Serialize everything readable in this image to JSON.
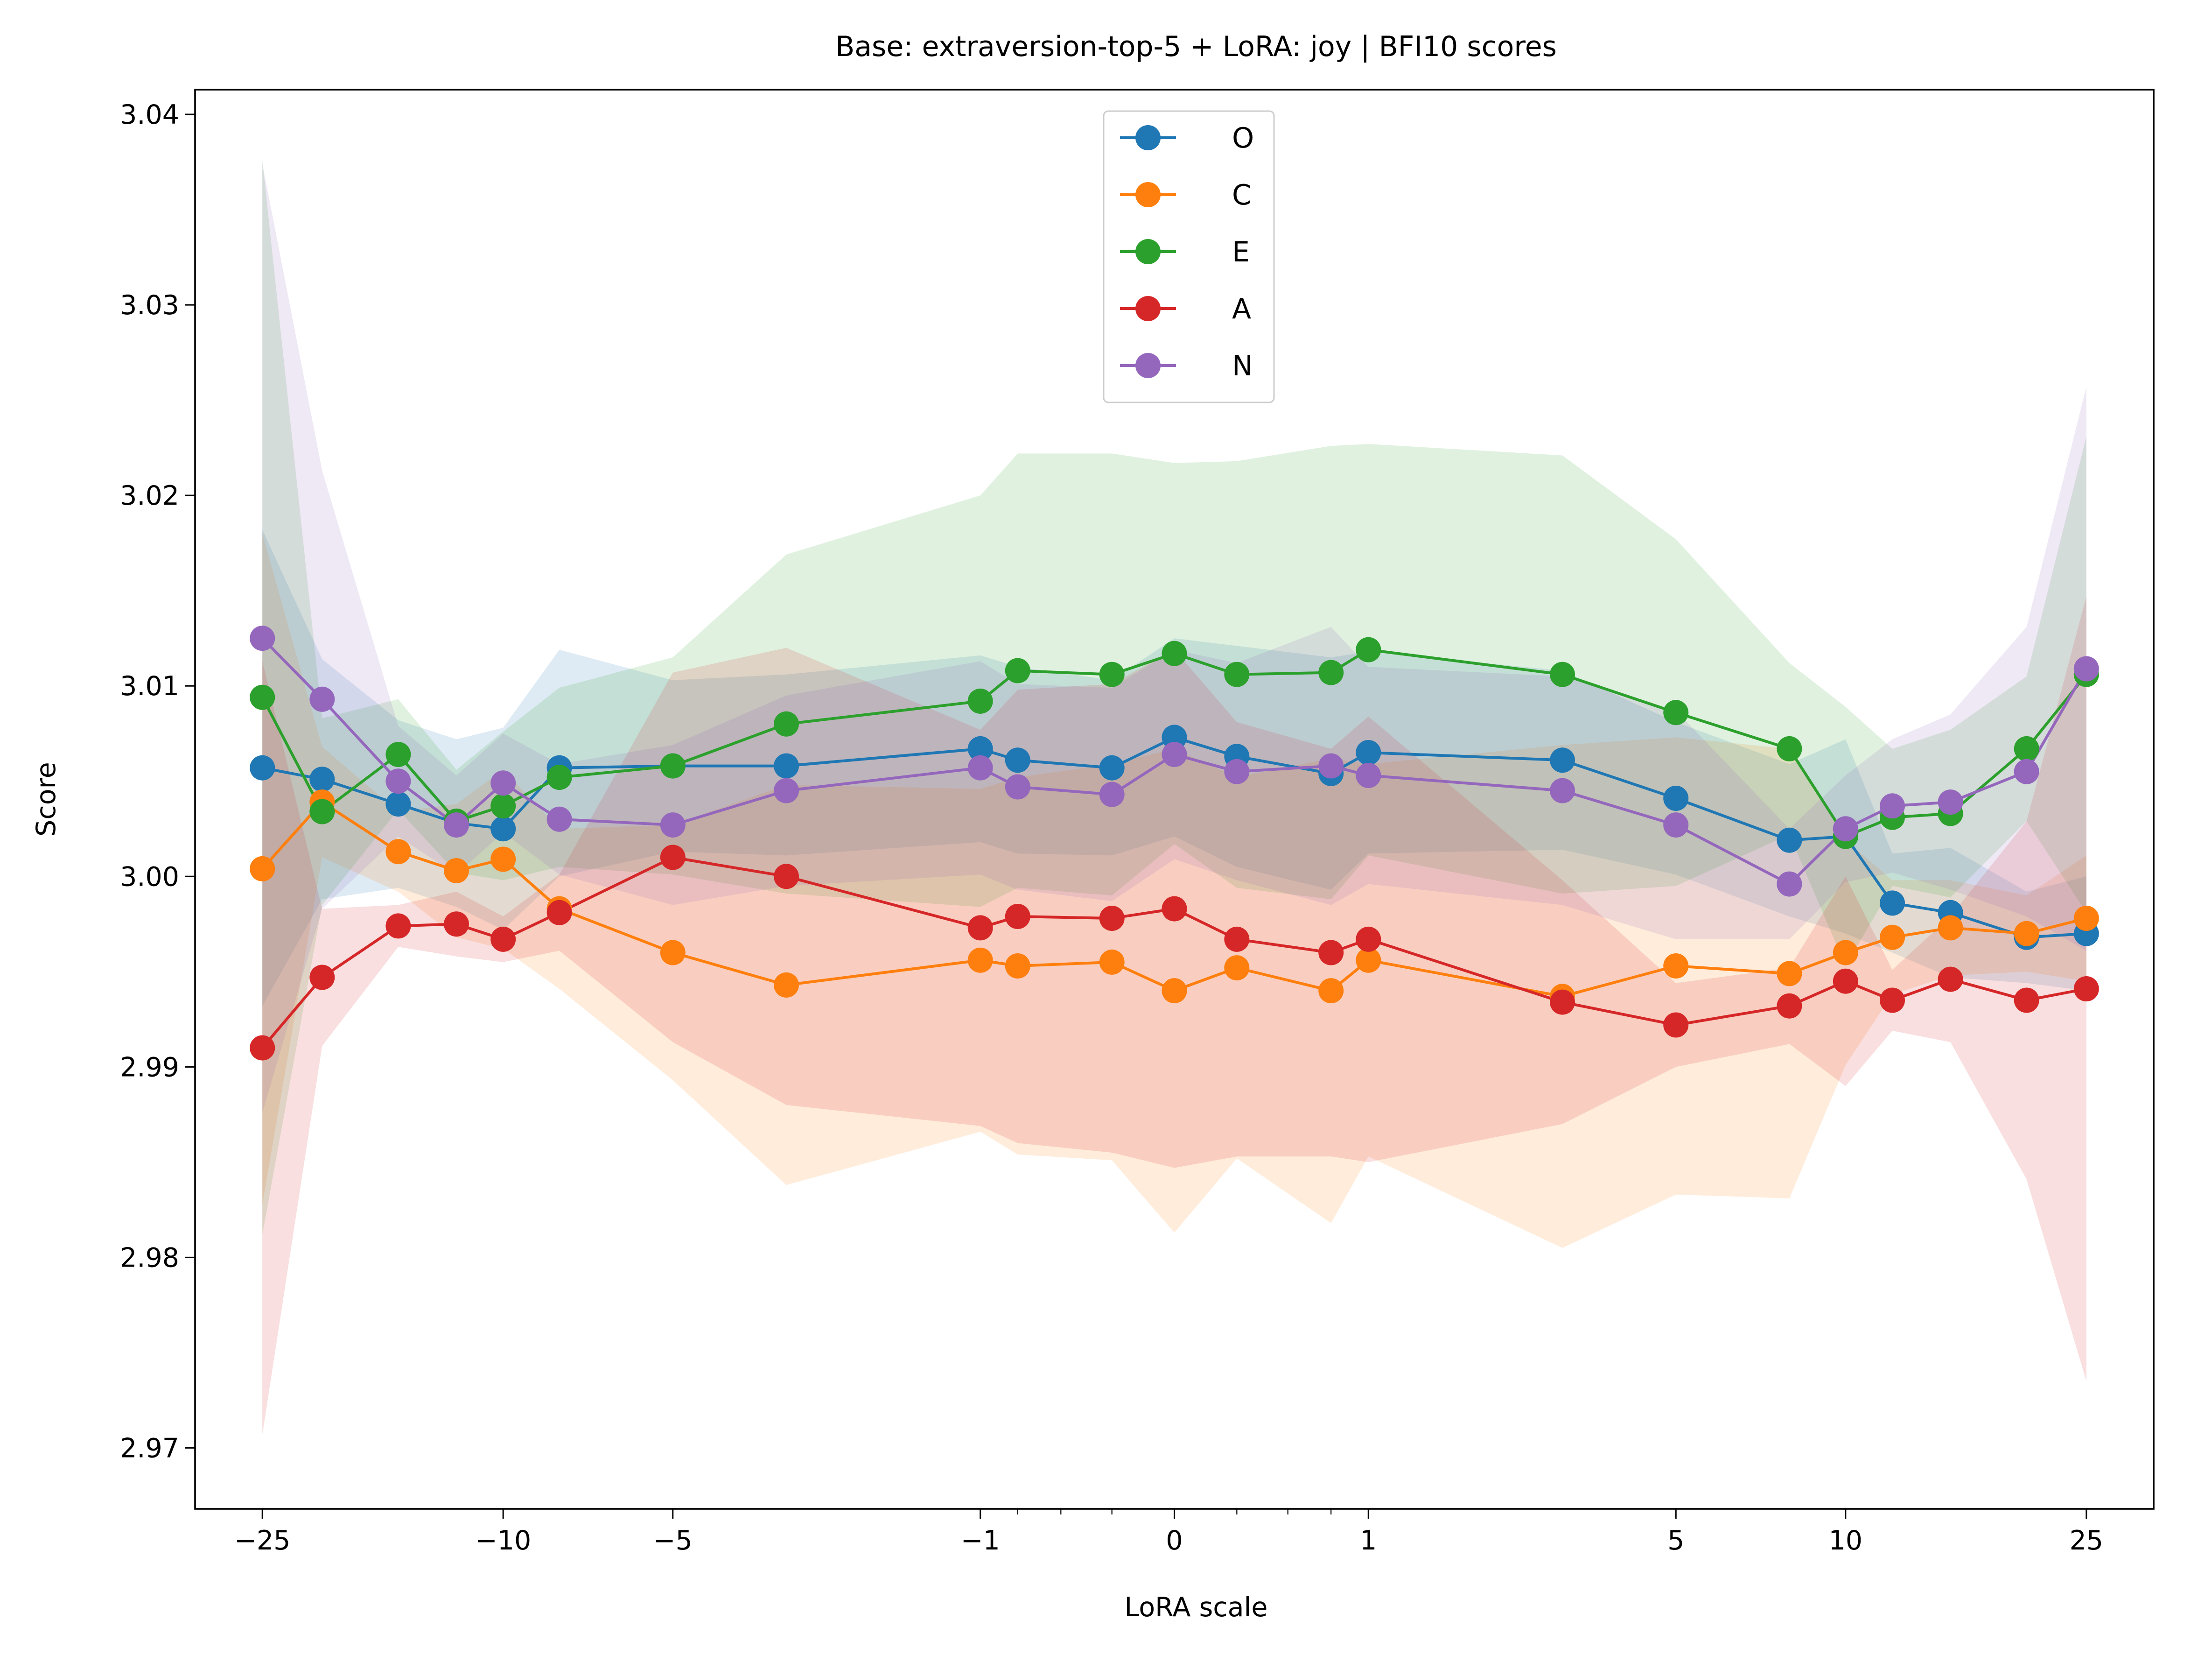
{
  "chart_data": {
    "type": "line",
    "title": "Base: extraversion-top-5 + LoRA: joy | BFI10 scores",
    "xlabel": "LoRA scale",
    "ylabel": "Score",
    "xscale": "symlog",
    "ylim": [
      2.9668,
      3.0413
    ],
    "yticks": [
      2.97,
      2.98,
      2.99,
      3.0,
      3.01,
      3.02,
      3.03,
      3.04
    ],
    "ytick_labels": [
      "2.97",
      "2.98",
      "2.99",
      "3.00",
      "3.01",
      "3.02",
      "3.03",
      "3.04"
    ],
    "xticks": [
      -25,
      -10,
      -5,
      -1,
      0,
      1,
      5,
      10,
      25
    ],
    "xtick_labels": [
      "−25",
      "−10",
      "−5",
      "−1",
      "0",
      "1",
      "5",
      "10",
      "25"
    ],
    "legend_position": "upper center",
    "grid": false,
    "x": [
      -25,
      -20,
      -15,
      -12,
      -10,
      -8,
      -5,
      -3,
      -1,
      -0.75,
      -0.25,
      0,
      0.25,
      0.75,
      1,
      3,
      5,
      8,
      10,
      12,
      15,
      20,
      25
    ],
    "series": [
      {
        "name": "O",
        "color": "#1f77b4",
        "values": [
          3.0057,
          3.0051,
          3.0038,
          3.0028,
          3.0025,
          3.0057,
          3.0058,
          3.0058,
          3.0067,
          3.0061,
          3.0057,
          3.0073,
          3.0063,
          3.0054,
          3.0065,
          3.0061,
          3.0041,
          3.0019,
          3.0021,
          2.9986,
          2.9981,
          2.9968,
          2.997
        ],
        "lower": [
          2.9932,
          2.9988,
          2.9994,
          2.9984,
          2.9972,
          3.0,
          3.0013,
          3.0011,
          3.0018,
          3.0012,
          3.0011,
          3.0021,
          3.0005,
          2.9993,
          3.0012,
          3.0014,
          3.0001,
          2.9979,
          2.997,
          2.996,
          2.9947,
          2.9944,
          2.994
        ],
        "upper": [
          3.0182,
          3.0114,
          3.0082,
          3.0072,
          3.0078,
          3.0119,
          3.0103,
          3.0106,
          3.0116,
          3.011,
          3.0103,
          3.0125,
          3.0121,
          3.0115,
          3.0118,
          3.0108,
          3.0081,
          3.0059,
          3.0072,
          3.0012,
          3.0015,
          2.9992,
          3.0
        ]
      },
      {
        "name": "C",
        "color": "#ff7f0e",
        "values": [
          3.0004,
          3.0039,
          3.0013,
          3.0003,
          3.0009,
          2.9983,
          2.996,
          2.9943,
          2.9956,
          2.9953,
          2.9955,
          2.994,
          2.9952,
          2.994,
          2.9956,
          2.9937,
          2.9953,
          2.9949,
          2.996,
          2.9968,
          2.9973,
          2.997,
          2.9978
        ],
        "lower": [
          2.9828,
          3.001,
          2.9992,
          2.9968,
          2.9962,
          2.9941,
          2.9893,
          2.9838,
          2.9866,
          2.9854,
          2.9851,
          2.9813,
          2.9852,
          2.9818,
          2.9853,
          2.9805,
          2.9833,
          2.9831,
          2.9901,
          2.9938,
          2.9948,
          2.995,
          2.9945
        ],
        "upper": [
          3.018,
          3.0068,
          3.0034,
          3.0038,
          3.0056,
          3.0025,
          3.0027,
          3.0048,
          3.0046,
          3.0052,
          3.0059,
          3.0067,
          3.0052,
          3.0062,
          3.0059,
          3.0069,
          3.0073,
          3.0067,
          3.0019,
          2.9998,
          2.9998,
          2.999,
          3.0011
        ]
      },
      {
        "name": "E",
        "color": "#2ca02c",
        "values": [
          3.0094,
          3.0034,
          3.0064,
          3.0029,
          3.0037,
          3.0052,
          3.0058,
          3.008,
          3.0092,
          3.0108,
          3.0106,
          3.0117,
          3.0106,
          3.0107,
          3.0119,
          3.0106,
          3.0086,
          3.0067,
          3.0021,
          3.0031,
          3.0033,
          3.0067,
          3.0106
        ],
        "lower": [
          2.9812,
          2.9985,
          3.0035,
          3.0002,
          2.9998,
          3.0005,
          3.0001,
          2.9991,
          2.9984,
          2.9994,
          2.999,
          3.0017,
          2.9994,
          2.9988,
          3.0011,
          2.9991,
          2.9995,
          3.0022,
          2.9953,
          2.9995,
          2.9989,
          3.0029,
          2.9981
        ],
        "upper": [
          3.0376,
          3.0083,
          3.0093,
          3.0056,
          3.0076,
          3.0099,
          3.0115,
          3.0169,
          3.02,
          3.0222,
          3.0222,
          3.0217,
          3.0218,
          3.0226,
          3.0227,
          3.0221,
          3.0177,
          3.0112,
          3.0089,
          3.0067,
          3.0077,
          3.0105,
          3.0231
        ]
      },
      {
        "name": "A",
        "color": "#d62728",
        "values": [
          2.991,
          2.9947,
          2.9974,
          2.9975,
          2.9967,
          2.9981,
          3.001,
          3.0,
          2.9973,
          2.9979,
          2.9978,
          2.9983,
          2.9967,
          2.996,
          2.9967,
          2.9934,
          2.9922,
          2.9932,
          2.9945,
          2.9935,
          2.9946,
          2.9935,
          2.9941
        ],
        "lower": [
          2.9707,
          2.9911,
          2.9963,
          2.9958,
          2.9955,
          2.9961,
          2.9913,
          2.988,
          2.9869,
          2.986,
          2.9855,
          2.9847,
          2.9853,
          2.9853,
          2.985,
          2.987,
          2.99,
          2.9912,
          2.989,
          2.9919,
          2.9913,
          2.9841,
          2.9735
        ],
        "upper": [
          3.0113,
          2.9983,
          2.9985,
          2.9992,
          2.9979,
          3.0001,
          3.0107,
          3.012,
          3.0077,
          3.0098,
          3.0101,
          3.0119,
          3.0081,
          3.0067,
          3.0084,
          2.9998,
          2.9944,
          2.9952,
          3.0,
          2.9951,
          2.9979,
          3.0029,
          3.0147
        ]
      },
      {
        "name": "N",
        "color": "#9467bd",
        "values": [
          3.0125,
          3.0093,
          3.005,
          3.0027,
          3.0049,
          3.003,
          3.0027,
          3.0045,
          3.0057,
          3.0047,
          3.0043,
          3.0064,
          3.0055,
          3.0058,
          3.0053,
          3.0045,
          3.0027,
          2.9996,
          3.0025,
          3.0037,
          3.0039,
          3.0055,
          3.0109
        ],
        "lower": [
          2.9876,
          2.9983,
          3.0021,
          3.0001,
          3.0023,
          3.0001,
          2.9985,
          2.9995,
          3.0001,
          2.9993,
          2.9987,
          3.0009,
          2.9998,
          2.9985,
          2.9996,
          2.9985,
          2.9967,
          2.9967,
          2.9997,
          3.0002,
          2.9993,
          2.9979,
          2.9961
        ],
        "upper": [
          3.0374,
          3.0213,
          3.0079,
          3.0053,
          3.0075,
          3.0059,
          3.0069,
          3.0095,
          3.0113,
          3.0101,
          3.0099,
          3.0119,
          3.0112,
          3.0131,
          3.011,
          3.0105,
          3.0087,
          3.0025,
          3.0053,
          3.0072,
          3.0085,
          3.0131,
          3.0257
        ]
      }
    ]
  }
}
